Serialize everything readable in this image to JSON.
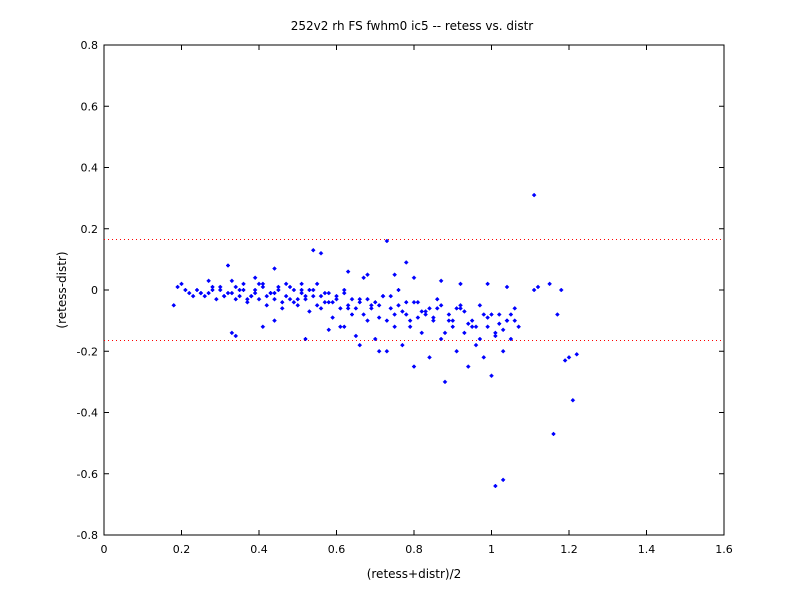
{
  "chart_data": {
    "type": "scatter",
    "title": "252v2 rh FS fwhm0 ic5 -- retess vs. distr",
    "xlabel": "(retess+distr)/2",
    "ylabel": "(retess-distr)",
    "xlim": [
      0,
      1.6
    ],
    "ylim": [
      -0.8,
      0.8
    ],
    "xticks": [
      0,
      0.2,
      0.4,
      0.6,
      0.8,
      1,
      1.2,
      1.4,
      1.6
    ],
    "yticks": [
      -0.8,
      -0.6,
      -0.4,
      -0.2,
      0,
      0.2,
      0.4,
      0.6,
      0.8
    ],
    "xtick_labels": [
      "0",
      "0.2",
      "0.4",
      "0.6",
      "0.8",
      "1",
      "1.2",
      "1.4",
      "1.6"
    ],
    "ytick_labels": [
      "-0.8",
      "-0.6",
      "-0.4",
      "-0.2",
      "0",
      "0.2",
      "0.4",
      "0.6",
      "0.8"
    ],
    "grid": false,
    "marker_color": "#0000ff",
    "reference_line_color": "#ff0000",
    "reference_lines": [
      0.165,
      -0.165
    ],
    "x": [
      0.18,
      0.19,
      0.2,
      0.21,
      0.22,
      0.23,
      0.24,
      0.25,
      0.26,
      0.27,
      0.28,
      0.29,
      0.3,
      0.31,
      0.32,
      0.33,
      0.34,
      0.35,
      0.36,
      0.37,
      0.38,
      0.39,
      0.4,
      0.41,
      0.42,
      0.43,
      0.44,
      0.45,
      0.46,
      0.47,
      0.48,
      0.49,
      0.5,
      0.51,
      0.52,
      0.53,
      0.54,
      0.55,
      0.56,
      0.57,
      0.58,
      0.59,
      0.6,
      0.61,
      0.62,
      0.63,
      0.64,
      0.65,
      0.66,
      0.67,
      0.68,
      0.69,
      0.7,
      0.71,
      0.72,
      0.73,
      0.74,
      0.75,
      0.76,
      0.77,
      0.78,
      0.79,
      0.8,
      0.81,
      0.82,
      0.83,
      0.84,
      0.85,
      0.86,
      0.87,
      0.88,
      0.89,
      0.9,
      0.91,
      0.92,
      0.93,
      0.94,
      0.95,
      0.96,
      0.97,
      0.98,
      0.99,
      1.0,
      1.01,
      1.02,
      1.03,
      1.04,
      1.05,
      1.06,
      1.07,
      0.25,
      0.28,
      0.31,
      0.34,
      0.37,
      0.4,
      0.43,
      0.46,
      0.49,
      0.52,
      0.55,
      0.58,
      0.61,
      0.64,
      0.67,
      0.7,
      0.73,
      0.76,
      0.79,
      0.82,
      0.85,
      0.88,
      0.91,
      0.94,
      0.97,
      1.0,
      1.03,
      1.06,
      0.3,
      0.33,
      0.36,
      0.39,
      0.42,
      0.45,
      0.48,
      0.51,
      0.54,
      0.57,
      0.6,
      0.63,
      0.66,
      0.69,
      0.72,
      0.75,
      0.78,
      0.81,
      0.84,
      0.87,
      0.9,
      0.93,
      0.96,
      0.99,
      1.02,
      1.05,
      0.35,
      0.38,
      0.41,
      0.44,
      0.47,
      0.5,
      0.53,
      0.56,
      0.59,
      0.62,
      0.65,
      0.68,
      0.71,
      0.74,
      0.77,
      0.8,
      0.83,
      0.86,
      0.89,
      0.92,
      0.95,
      0.98,
      1.01,
      1.04,
      0.32,
      0.44,
      0.56,
      0.68,
      0.8,
      0.92,
      1.04,
      0.27,
      0.39,
      0.51,
      0.63,
      0.75,
      0.87,
      0.99,
      1.11,
      1.12,
      1.15,
      1.17,
      1.18,
      1.19,
      1.2,
      1.21,
      1.22,
      1.16,
      1.11,
      1.03,
      1.01,
      0.73,
      0.54,
      0.78,
      0.33,
      0.41,
      0.34,
      0.71,
      0.44,
      0.62,
      0.66,
      0.58,
      0.52
    ],
    "y": [
      -0.05,
      0.01,
      0.02,
      0.0,
      -0.01,
      -0.02,
      0.0,
      -0.01,
      -0.02,
      -0.01,
      0.01,
      -0.03,
      0.0,
      -0.02,
      -0.01,
      0.03,
      -0.03,
      -0.02,
      0.0,
      -0.04,
      -0.02,
      -0.01,
      -0.03,
      0.02,
      -0.05,
      -0.01,
      -0.03,
      0.0,
      -0.06,
      -0.02,
      0.01,
      -0.04,
      -0.05,
      0.0,
      -0.03,
      -0.07,
      -0.02,
      0.02,
      -0.06,
      -0.01,
      -0.04,
      -0.09,
      -0.03,
      -0.12,
      0.0,
      -0.06,
      -0.08,
      -0.15,
      -0.04,
      0.04,
      -0.1,
      -0.05,
      -0.16,
      -0.09,
      -0.02,
      -0.2,
      -0.06,
      -0.12,
      0.0,
      -0.18,
      -0.08,
      -0.1,
      -0.25,
      -0.04,
      -0.14,
      -0.07,
      -0.22,
      -0.1,
      -0.03,
      -0.16,
      -0.3,
      -0.08,
      -0.12,
      -0.2,
      -0.06,
      -0.14,
      -0.25,
      -0.1,
      -0.18,
      -0.05,
      -0.22,
      -0.12,
      -0.28,
      -0.15,
      -0.08,
      -0.2,
      -0.1,
      -0.16,
      -0.06,
      -0.12,
      -0.01,
      0.0,
      -0.02,
      0.01,
      -0.03,
      0.02,
      -0.01,
      -0.04,
      0.0,
      -0.02,
      -0.05,
      -0.01,
      -0.06,
      -0.03,
      -0.08,
      -0.04,
      -0.1,
      -0.05,
      -0.12,
      -0.07,
      -0.09,
      -0.14,
      -0.06,
      -0.11,
      -0.16,
      -0.08,
      -0.13,
      -0.1,
      0.01,
      -0.01,
      0.02,
      0.0,
      -0.02,
      0.01,
      -0.03,
      -0.01,
      0.0,
      -0.04,
      -0.02,
      -0.05,
      -0.03,
      -0.06,
      -0.02,
      -0.08,
      -0.04,
      -0.09,
      -0.06,
      -0.05,
      -0.1,
      -0.07,
      -0.12,
      -0.09,
      -0.11,
      -0.08,
      0.0,
      -0.02,
      0.01,
      -0.01,
      0.02,
      -0.03,
      0.0,
      -0.02,
      -0.04,
      -0.01,
      -0.06,
      -0.03,
      -0.05,
      -0.02,
      -0.07,
      -0.04,
      -0.08,
      -0.06,
      -0.1,
      -0.05,
      -0.12,
      -0.08,
      -0.14,
      -0.1,
      0.08,
      0.07,
      0.12,
      0.05,
      0.04,
      0.02,
      0.01,
      0.03,
      0.04,
      0.02,
      0.06,
      0.05,
      0.03,
      0.02,
      0.0,
      0.01,
      0.02,
      -0.08,
      0.0,
      -0.23,
      -0.22,
      -0.36,
      -0.21,
      -0.47,
      0.31,
      -0.62,
      -0.64,
      0.16,
      0.13,
      0.09,
      -0.14,
      -0.12,
      -0.15,
      -0.2,
      -0.1,
      -0.12,
      -0.18,
      -0.13,
      -0.16
    ]
  }
}
